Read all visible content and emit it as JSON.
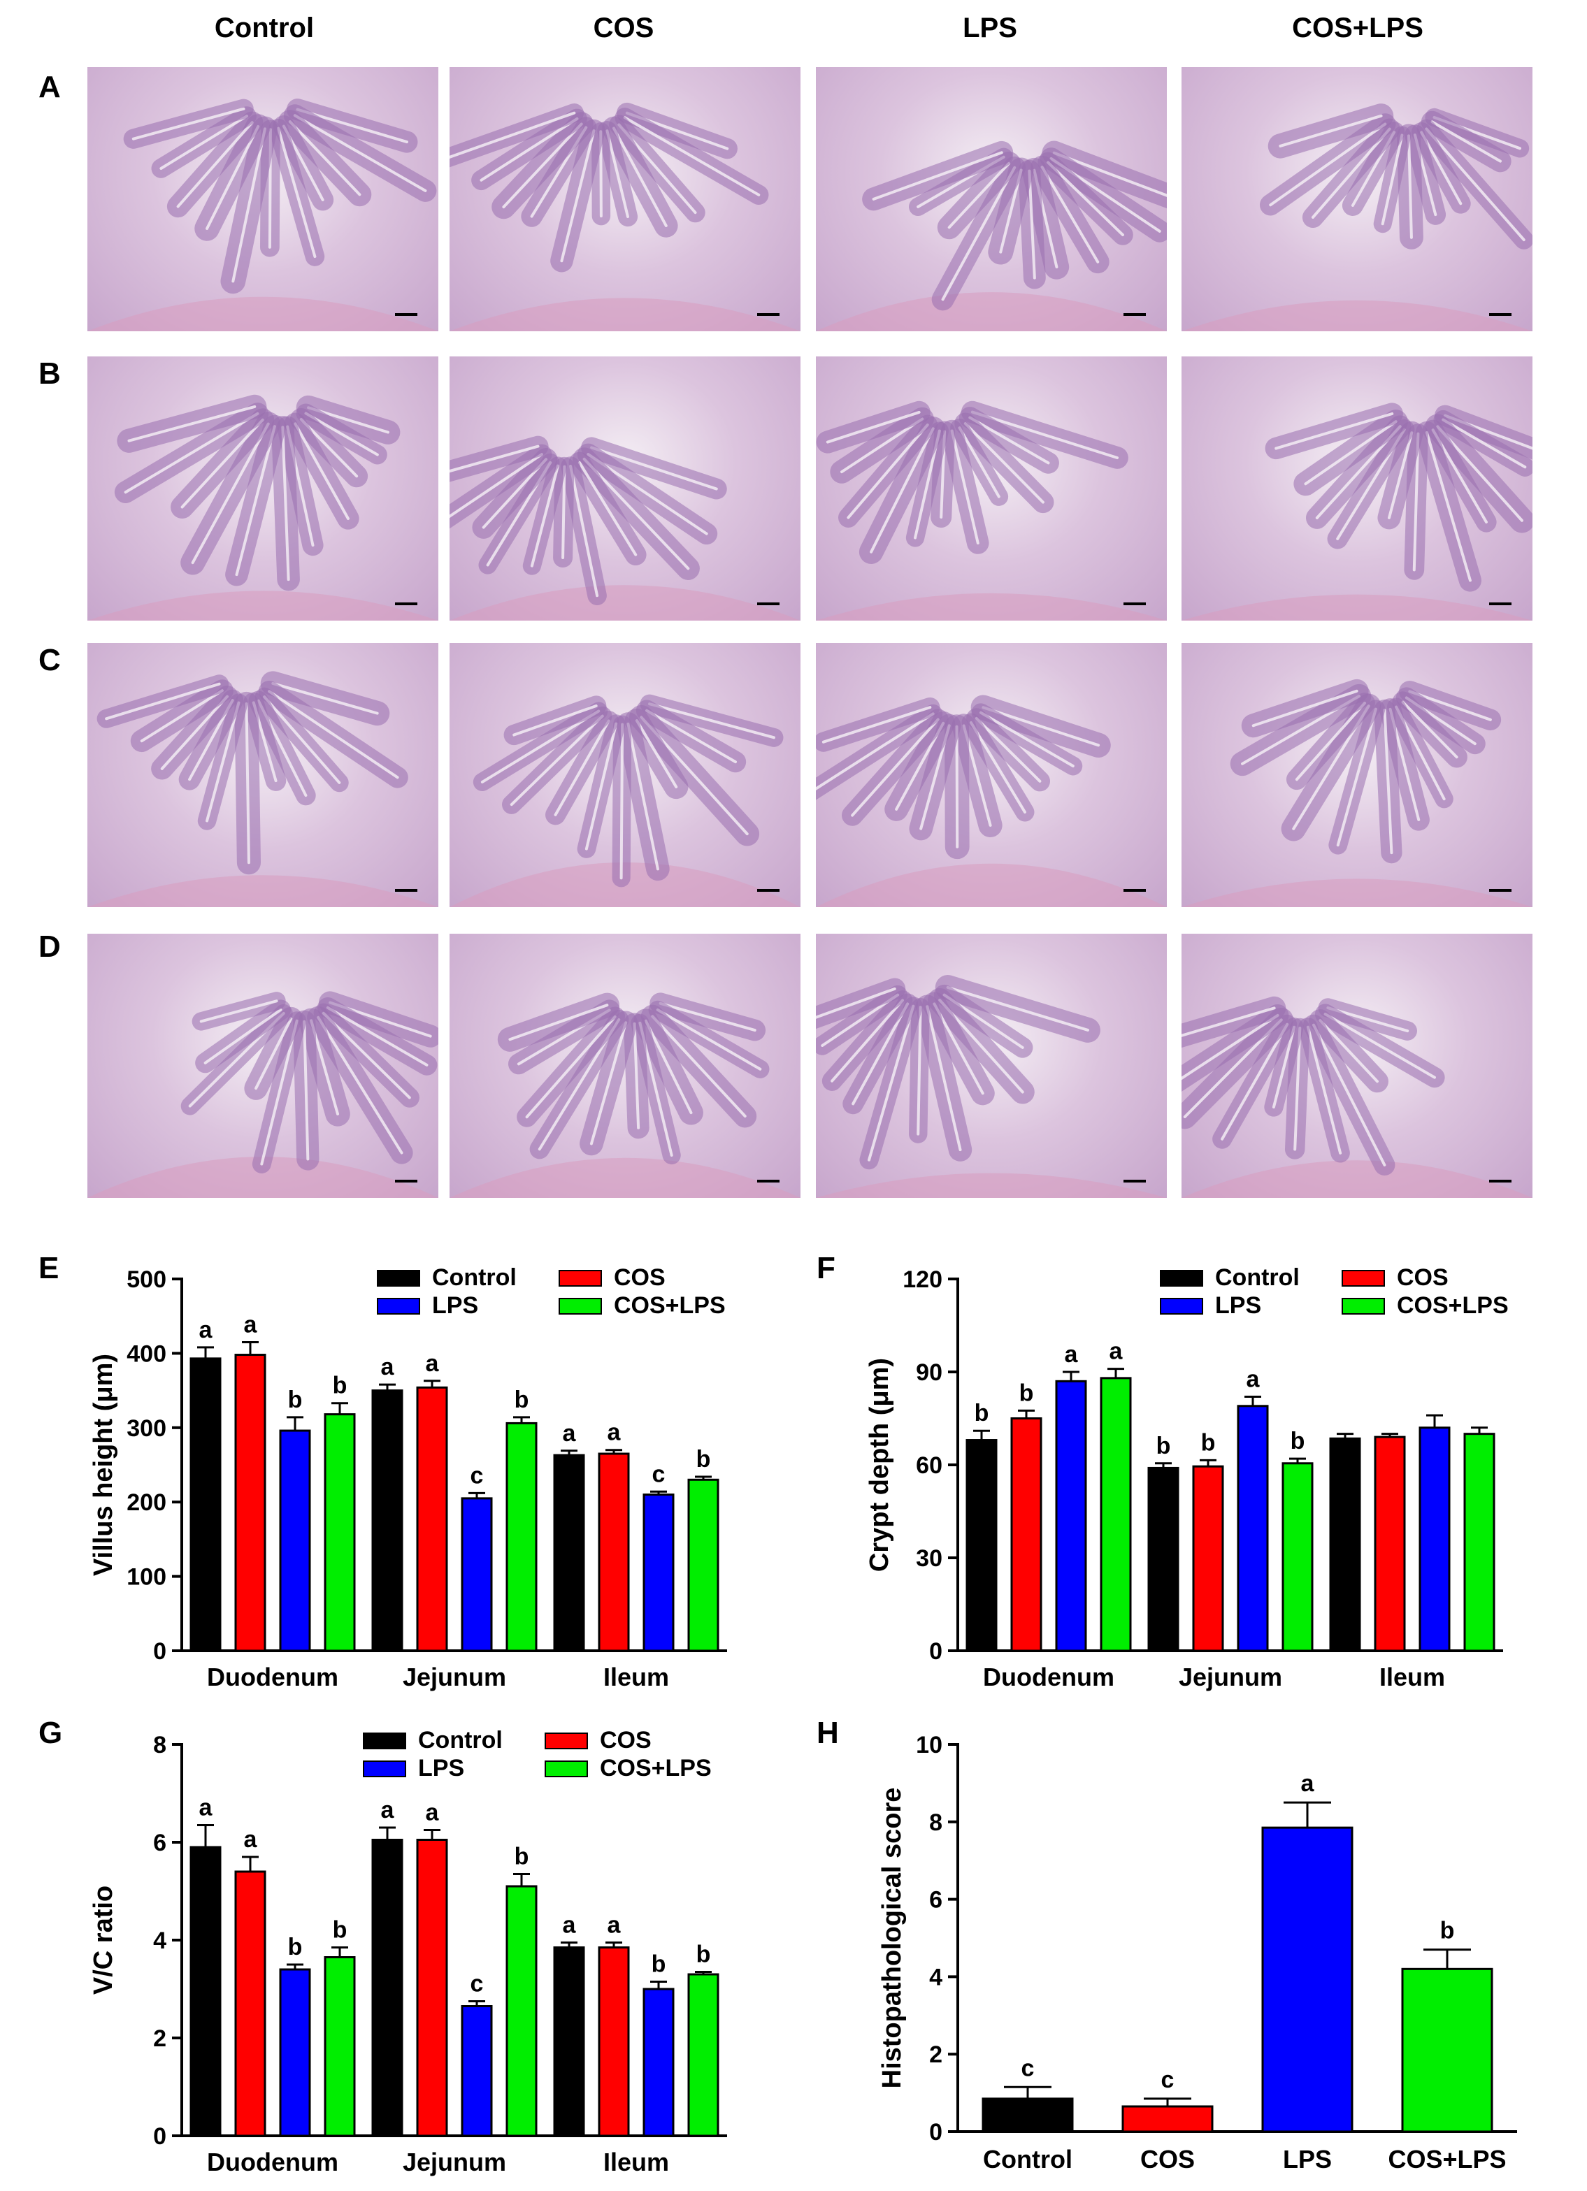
{
  "column_headers": [
    "Control",
    "COS",
    "LPS",
    "COS+LPS"
  ],
  "row_labels": [
    "A",
    "B",
    "C",
    "D"
  ],
  "colors": {
    "Control": "#000000",
    "COS": "#ff0000",
    "LPS": "#0000ff",
    "COS+LPS": "#00ee00"
  },
  "chart_data": [
    {
      "panel": "E",
      "type": "bar",
      "ylabel": "Villus height (μm)",
      "ylim": [
        0,
        500
      ],
      "yticks": [
        0,
        100,
        200,
        300,
        400,
        500
      ],
      "categories": [
        "Duodenum",
        "Jejunum",
        "Ileum"
      ],
      "legend_position": "top-right",
      "series": [
        {
          "name": "Control",
          "values": [
            393,
            350,
            263
          ],
          "errors": [
            15,
            8,
            6
          ],
          "letters": [
            "a",
            "a",
            "a"
          ]
        },
        {
          "name": "COS",
          "values": [
            398,
            354,
            265
          ],
          "errors": [
            17,
            9,
            5
          ],
          "letters": [
            "a",
            "a",
            "a"
          ]
        },
        {
          "name": "LPS",
          "values": [
            296,
            205,
            210
          ],
          "errors": [
            18,
            7,
            4
          ],
          "letters": [
            "b",
            "c",
            "c"
          ]
        },
        {
          "name": "COS+LPS",
          "values": [
            318,
            306,
            230
          ],
          "errors": [
            15,
            8,
            4
          ],
          "letters": [
            "b",
            "b",
            "b"
          ]
        }
      ]
    },
    {
      "panel": "F",
      "type": "bar",
      "ylabel": "Crypt depth (μm)",
      "ylim": [
        0,
        120
      ],
      "yticks": [
        0,
        30,
        60,
        90,
        120
      ],
      "categories": [
        "Duodenum",
        "Jejunum",
        "Ileum"
      ],
      "legend_position": "top-right",
      "series": [
        {
          "name": "Control",
          "values": [
            68,
            59,
            68.5
          ],
          "errors": [
            3,
            1.5,
            1.5
          ],
          "letters": [
            "b",
            "b",
            ""
          ]
        },
        {
          "name": "COS",
          "values": [
            75,
            59.5,
            69
          ],
          "errors": [
            2.5,
            2,
            1
          ],
          "letters": [
            "b",
            "b",
            ""
          ]
        },
        {
          "name": "LPS",
          "values": [
            87,
            79,
            72
          ],
          "errors": [
            3,
            3,
            4
          ],
          "letters": [
            "a",
            "a",
            ""
          ]
        },
        {
          "name": "COS+LPS",
          "values": [
            88,
            60.5,
            70
          ],
          "errors": [
            3,
            1.5,
            2
          ],
          "letters": [
            "a",
            "b",
            ""
          ]
        }
      ]
    },
    {
      "panel": "G",
      "type": "bar",
      "ylabel": "V/C ratio",
      "ylim": [
        0,
        8
      ],
      "yticks": [
        0,
        2,
        4,
        6,
        8
      ],
      "categories": [
        "Duodenum",
        "Jejunum",
        "Ileum"
      ],
      "legend_position": "top-right",
      "series": [
        {
          "name": "Control",
          "values": [
            5.9,
            6.05,
            3.85
          ],
          "errors": [
            0.45,
            0.25,
            0.1
          ],
          "letters": [
            "a",
            "a",
            "a"
          ]
        },
        {
          "name": "COS",
          "values": [
            5.4,
            6.05,
            3.85
          ],
          "errors": [
            0.3,
            0.2,
            0.1
          ],
          "letters": [
            "a",
            "a",
            "a"
          ]
        },
        {
          "name": "LPS",
          "values": [
            3.4,
            2.65,
            3.0
          ],
          "errors": [
            0.1,
            0.1,
            0.15
          ],
          "letters": [
            "b",
            "c",
            "b"
          ]
        },
        {
          "name": "COS+LPS",
          "values": [
            3.65,
            5.1,
            3.3
          ],
          "errors": [
            0.2,
            0.25,
            0.05
          ],
          "letters": [
            "b",
            "b",
            "b"
          ]
        }
      ]
    },
    {
      "panel": "H",
      "type": "bar",
      "ylabel": "Histopathological score",
      "ylim": [
        0,
        10
      ],
      "yticks": [
        0,
        2,
        4,
        6,
        8,
        10
      ],
      "categories": [
        "Control",
        "COS",
        "LPS",
        "COS+LPS"
      ],
      "series": [
        {
          "name": "score",
          "values": [
            0.85,
            0.65,
            7.85,
            4.2
          ],
          "errors": [
            0.3,
            0.2,
            0.65,
            0.5
          ],
          "letters": [
            "c",
            "c",
            "a",
            "b"
          ]
        }
      ]
    }
  ]
}
